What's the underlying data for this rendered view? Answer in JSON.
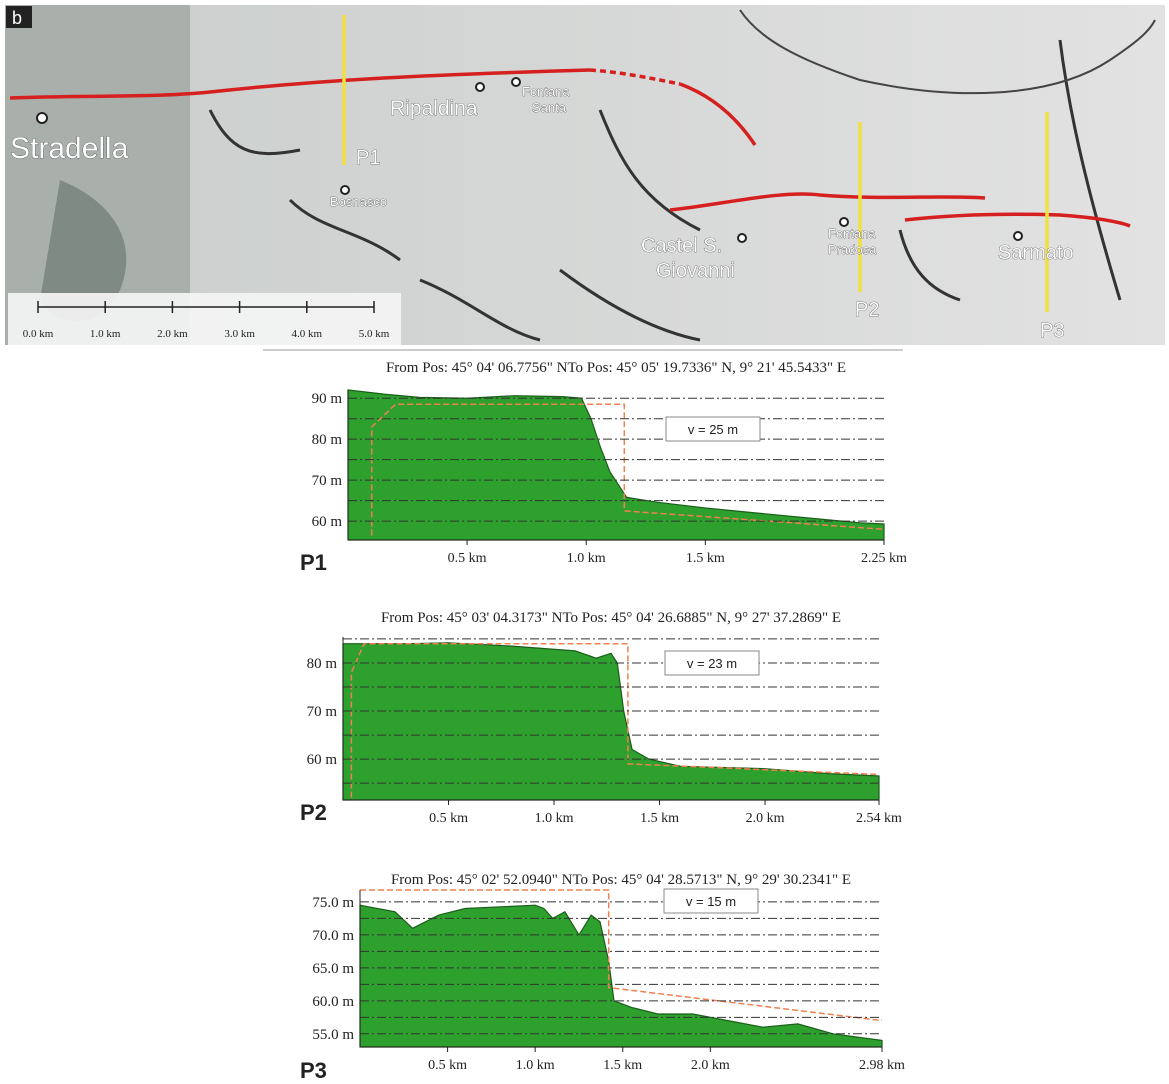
{
  "map": {
    "panel_label": "b",
    "places": {
      "stradella": "Stradella",
      "ripaldina": "Ripaldina",
      "fontana_santa": [
        "Fontana",
        "Santa"
      ],
      "bosnasco": "Bosnasco",
      "castel": [
        "Castel S.",
        "Giovanni"
      ],
      "fontana_pradosa": [
        "Fontana",
        "Pradosa"
      ],
      "sarmato": "Sarmato"
    },
    "profiles": [
      "P1",
      "P2",
      "P3"
    ],
    "scale_labels": [
      "0.0 km",
      "1.0 km",
      "2.0 km",
      "3.0 km",
      "4.0 km",
      "5.0 km"
    ]
  },
  "chart_data": [
    {
      "type": "area",
      "title": "From Pos: 45° 04' 06.7756\" NTo Pos: 45° 05' 19.7336\" N, 9° 21' 45.5433\" E",
      "label": "P1",
      "annotation": "v = 25 m",
      "xlim": [
        0,
        2.25
      ],
      "ylim": [
        55.4,
        92
      ],
      "xticks": [
        {
          "value": 0.5,
          "label": "0.5 km"
        },
        {
          "value": 1.0,
          "label": "1.0 km"
        },
        {
          "value": 1.5,
          "label": "1.5 km"
        },
        {
          "value": 2.25,
          "label": "2.25 km"
        }
      ],
      "yticks": [
        {
          "value": 60,
          "label": "60 m"
        },
        {
          "value": 70,
          "label": "70 m"
        },
        {
          "value": 80,
          "label": "80 m"
        },
        {
          "value": 90,
          "label": "90 m"
        }
      ],
      "minor_yticks": [
        65,
        75,
        85
      ],
      "series": [
        {
          "color": "#2ea02e",
          "x": [
            0,
            0.15,
            0.3,
            0.5,
            0.7,
            0.9,
            0.98,
            1.02,
            1.06,
            1.1,
            1.17,
            1.3,
            1.5,
            1.75,
            2.0,
            2.15,
            2.25
          ],
          "values": [
            92,
            91,
            90.2,
            90,
            90.6,
            90.4,
            90,
            85,
            78,
            72,
            65.8,
            64.6,
            63.2,
            61.8,
            60.4,
            59.6,
            59.3
          ]
        },
        {
          "color": "#f08050",
          "dashed": true,
          "x": [
            0.1,
            0.1,
            0.2,
            1.16,
            1.16,
            2.25
          ],
          "values": [
            56.5,
            83,
            88.5,
            88.5,
            62.5,
            58
          ]
        }
      ]
    },
    {
      "type": "area",
      "title": "From Pos: 45° 03' 04.3173\" NTo Pos: 45° 04' 26.6885\" N, 9° 27' 37.2869\" E",
      "label": "P2",
      "annotation": "v = 23 m",
      "xlim": [
        0,
        2.54
      ],
      "ylim": [
        51.5,
        85.4
      ],
      "xticks": [
        {
          "value": 0.5,
          "label": "0.5 km"
        },
        {
          "value": 1.0,
          "label": "1.0 km"
        },
        {
          "value": 1.5,
          "label": "1.5 km"
        },
        {
          "value": 2.0,
          "label": "2.0 km"
        },
        {
          "value": 2.54,
          "label": "2.54 km"
        }
      ],
      "yticks": [
        {
          "value": 60,
          "label": "60 m"
        },
        {
          "value": 70,
          "label": "70 m"
        },
        {
          "value": 80,
          "label": "80 m"
        }
      ],
      "minor_yticks": [
        55,
        65,
        75,
        85
      ],
      "series": [
        {
          "color": "#2ea02e",
          "x": [
            0,
            0.3,
            0.5,
            0.8,
            1.1,
            1.2,
            1.27,
            1.3,
            1.33,
            1.37,
            1.45,
            1.6,
            2.0,
            2.3,
            2.54
          ],
          "values": [
            84,
            84,
            84.2,
            83.5,
            82.5,
            81,
            82,
            80,
            70,
            62,
            60,
            58.5,
            58,
            57,
            56.5
          ]
        },
        {
          "color": "#f08050",
          "dashed": true,
          "x": [
            0.04,
            0.04,
            0.1,
            1.35,
            1.35,
            2.54
          ],
          "values": [
            52,
            78,
            84,
            84,
            59,
            56.8
          ]
        }
      ]
    },
    {
      "type": "area",
      "title": "From Pos: 45° 02' 52.0940\" NTo Pos: 45° 04' 28.5713\" N, 9° 29' 30.2341\" E",
      "label": "P3",
      "annotation": "v = 15 m",
      "xlim": [
        0,
        2.98
      ],
      "ylim": [
        53,
        76.8
      ],
      "xticks": [
        {
          "value": 0.5,
          "label": "0.5 km"
        },
        {
          "value": 1.0,
          "label": "1.0 km"
        },
        {
          "value": 1.5,
          "label": "1.5 km"
        },
        {
          "value": 2.0,
          "label": "2.0 km"
        },
        {
          "value": 2.98,
          "label": "2.98 km"
        }
      ],
      "yticks": [
        {
          "value": 55,
          "label": "55.0 m"
        },
        {
          "value": 60,
          "label": "60.0 m"
        },
        {
          "value": 65,
          "label": "65.0 m"
        },
        {
          "value": 70,
          "label": "70.0 m"
        },
        {
          "value": 75,
          "label": "75.0 m"
        }
      ],
      "minor_yticks": [
        57.5,
        62.5,
        67.5,
        72.5
      ],
      "series": [
        {
          "color": "#2ea02e",
          "x": [
            0,
            0.2,
            0.3,
            0.45,
            0.6,
            1.0,
            1.05,
            1.1,
            1.17,
            1.25,
            1.32,
            1.37,
            1.42,
            1.45,
            1.55,
            1.7,
            1.9,
            2.1,
            2.3,
            2.5,
            2.7,
            2.98
          ],
          "values": [
            74.5,
            73.5,
            71,
            73,
            74,
            74.5,
            74,
            72.5,
            73.5,
            70,
            73,
            72,
            66,
            60,
            59,
            58,
            58,
            57,
            56,
            56.5,
            55,
            54
          ]
        },
        {
          "color": "#f08050",
          "dashed": true,
          "x": [
            0,
            1.42,
            1.42,
            2.98
          ],
          "values": [
            76.8,
            76.8,
            62,
            57
          ]
        }
      ]
    }
  ]
}
